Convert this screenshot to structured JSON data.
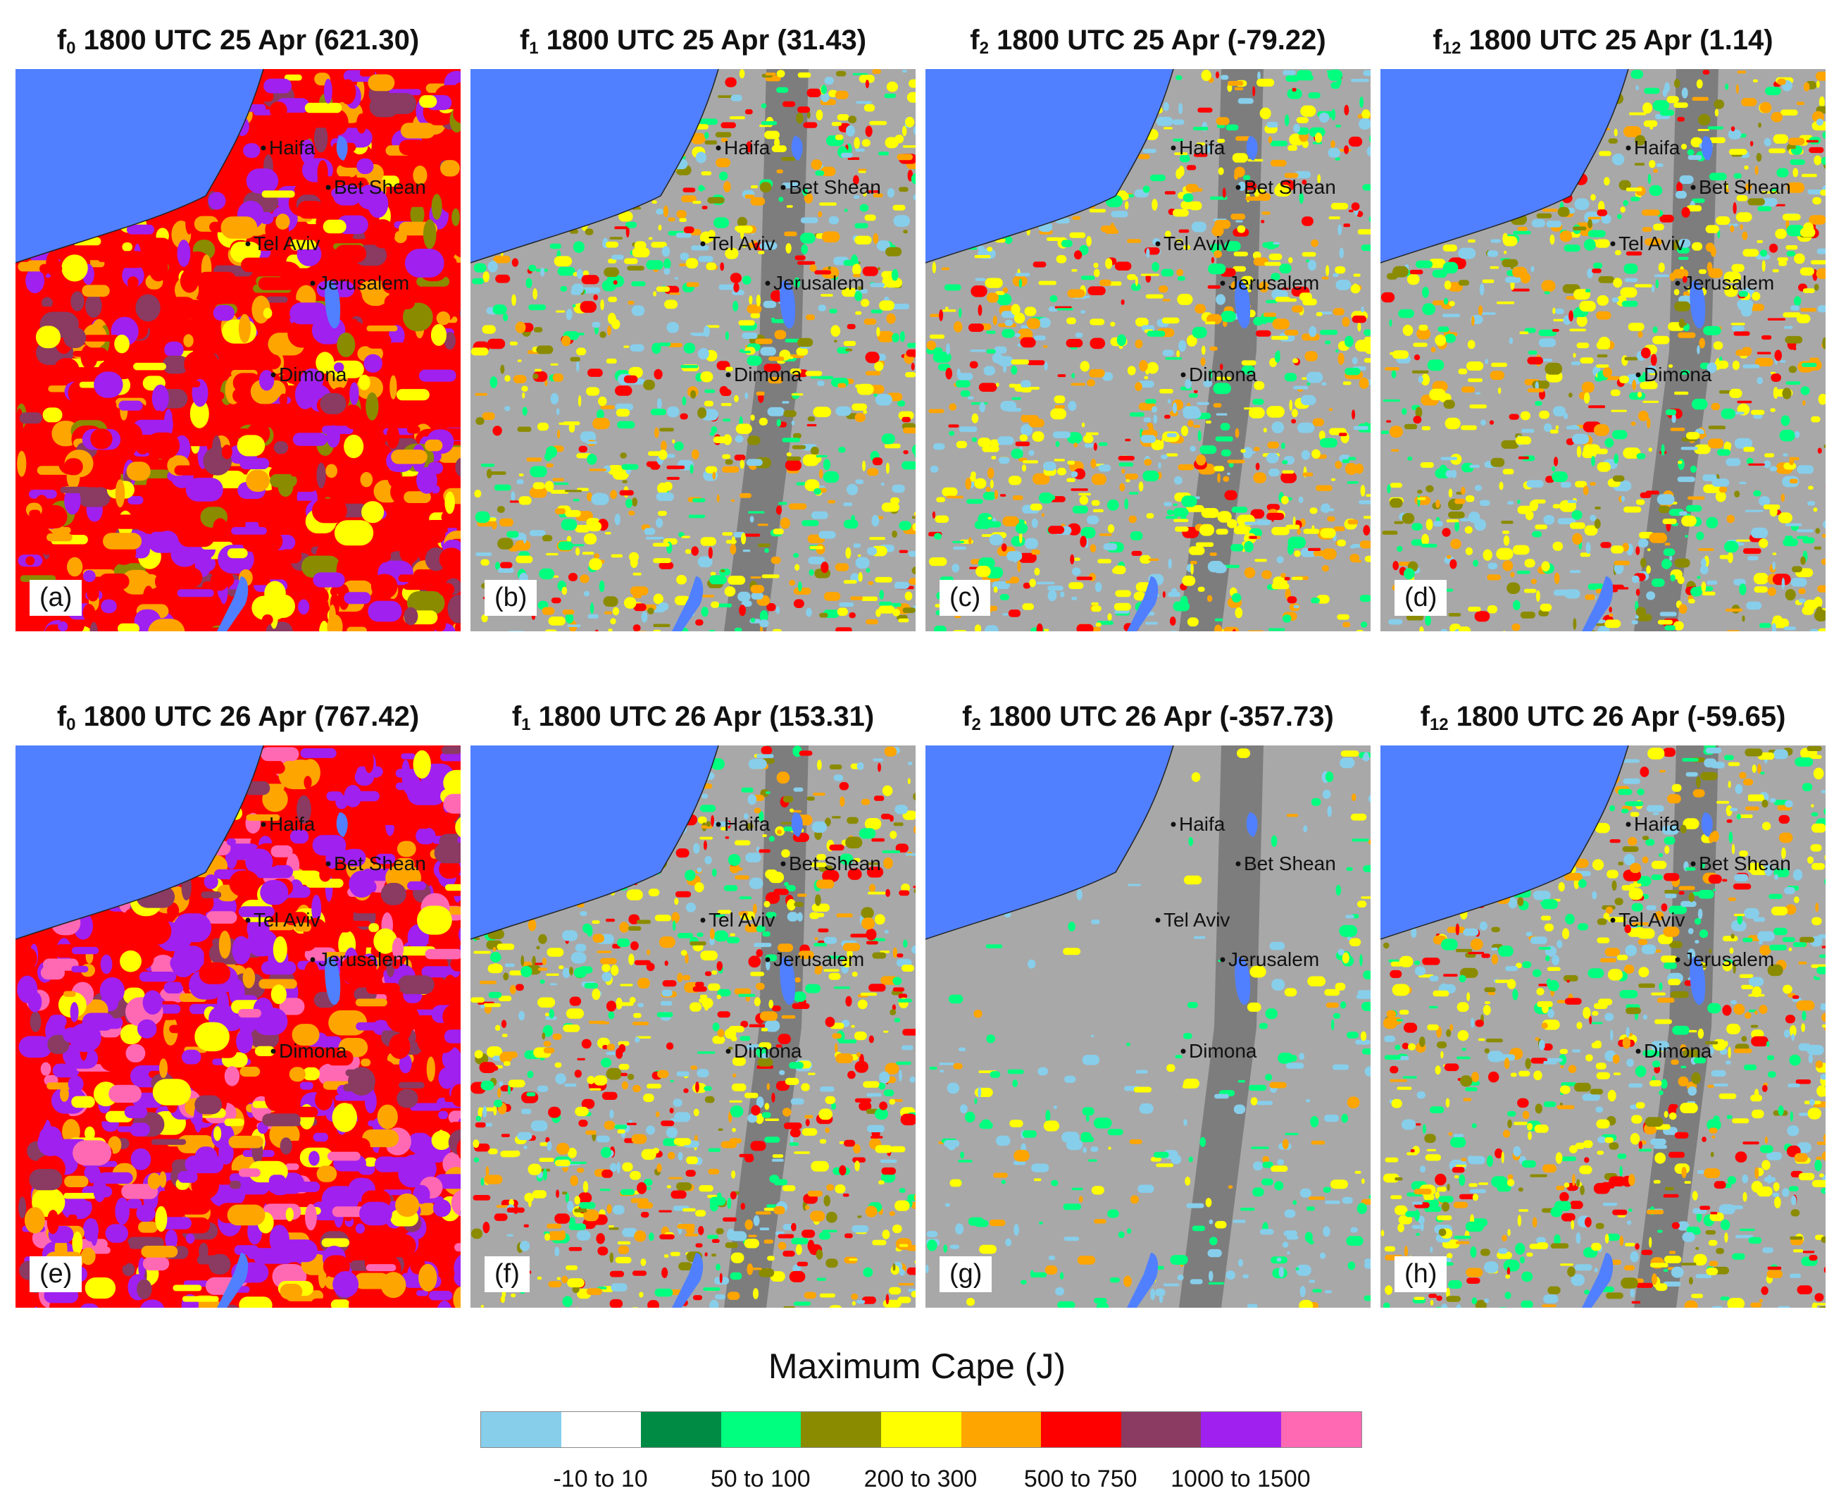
{
  "panels": [
    {
      "id": "a",
      "label": "(a)",
      "f": "f",
      "sub": "0",
      "time": "1800 UTC 25 Apr",
      "value": "(621.30)",
      "scheme": "hi1"
    },
    {
      "id": "b",
      "label": "(b)",
      "f": "f",
      "sub": "1",
      "time": "1800 UTC 25 Apr",
      "value": "(31.43)",
      "scheme": "mid"
    },
    {
      "id": "c",
      "label": "(c)",
      "f": "f",
      "sub": "2",
      "time": "1800 UTC 25 Apr",
      "value": "(-79.22)",
      "scheme": "mid2"
    },
    {
      "id": "d",
      "label": "(d)",
      "f": "f",
      "sub": "12",
      "time": "1800 UTC 25 Apr",
      "value": "(1.14)",
      "scheme": "mid"
    },
    {
      "id": "e",
      "label": "(e)",
      "f": "f",
      "sub": "0",
      "time": "1800 UTC 26 Apr",
      "value": "(767.42)",
      "scheme": "hi2"
    },
    {
      "id": "f",
      "label": "(f)",
      "f": "f",
      "sub": "1",
      "time": "1800 UTC 26 Apr",
      "value": "(153.31)",
      "scheme": "midhot"
    },
    {
      "id": "g",
      "label": "(g)",
      "f": "f",
      "sub": "2",
      "time": "1800 UTC 26 Apr",
      "value": "(-357.73)",
      "scheme": "low"
    },
    {
      "id": "h",
      "label": "(h)",
      "f": "f",
      "sub": "12",
      "time": "1800 UTC 26 Apr",
      "value": "(-59.65)",
      "scheme": "mid"
    }
  ],
  "cities": [
    "Haifa",
    "Bet Shean",
    "Tel Aviv",
    "Jerusalem",
    "Dimona"
  ],
  "colorbar": {
    "title": "Maximum Cape (J)",
    "colors": [
      "#87ceeb",
      "#ffffff",
      "#008b45",
      "#00ff7f",
      "#8b8b00",
      "#ffff00",
      "#ffa500",
      "#ff0000",
      "#8b3a62",
      "#a020f0",
      "#ff69b4"
    ],
    "tick_labels": [
      "-10 to 10",
      "50 to 100",
      "200 to 300",
      "500 to 750",
      "1000 to 1500"
    ]
  },
  "colors": {
    "sea": "#5080ff",
    "terrain_light": "#a8a8a8",
    "terrain_dark": "#606060"
  }
}
